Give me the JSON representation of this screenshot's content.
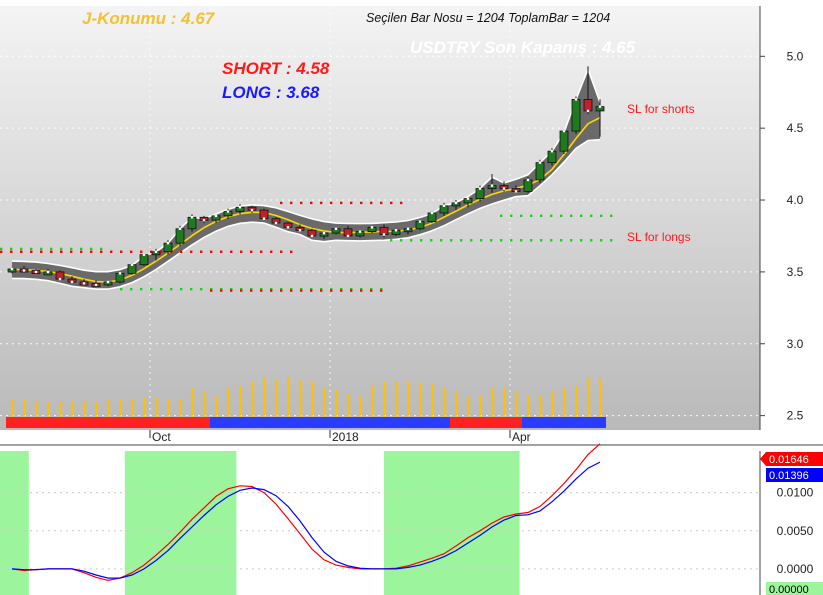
{
  "header": {
    "j_konumu": "J-Konumu : 4.67",
    "bar_info": "Seçilen Bar Nosu = 1204  ToplamBar = 1204",
    "son_kapanis": "USDTRY Son Kapanış : 4.65",
    "short_label": "SHORT : 4.58",
    "long_label": "LONG : 3.68",
    "sl_shorts": "SL for shorts",
    "sl_longs": "SL for longs"
  },
  "colors": {
    "j_konumu": "#f2c230",
    "son_kapanis": "#ffffff",
    "short": "#ff1a1a",
    "long": "#1a1aff",
    "sl_text": "#ff1a1a",
    "up_candle": "#1f7a1f",
    "down_candle": "#c0202a",
    "ma_line": "#ffd700",
    "band_line": "#ffffff",
    "volume": "#ffc000",
    "strip_red": "#ff2020",
    "strip_blue": "#2a3cff",
    "osc_red": "#ff0000",
    "osc_blue": "#0000ff",
    "osc_green_zone": "#9cf59c",
    "dots_red": "#ff0000",
    "dots_green": "#22cc22"
  },
  "chart_data": [
    {
      "type": "candlestick",
      "y_axis_ticks": [
        "5.0",
        "4.5",
        "4.0",
        "3.5",
        "3.0",
        "2.5"
      ],
      "ylim": [
        2.4,
        5.35
      ],
      "x_axis_labels": [
        "Oct",
        "2018",
        "Apr"
      ],
      "grid": true,
      "last_close": 4.65,
      "short_level": 4.58,
      "long_level": 3.68,
      "ohlc": [
        [
          3.51,
          3.53,
          3.49,
          3.52
        ],
        [
          3.52,
          3.54,
          3.5,
          3.51
        ],
        [
          3.51,
          3.52,
          3.49,
          3.5
        ],
        [
          3.5,
          3.52,
          3.48,
          3.5
        ],
        [
          3.5,
          3.51,
          3.44,
          3.45
        ],
        [
          3.45,
          3.47,
          3.42,
          3.43
        ],
        [
          3.43,
          3.45,
          3.41,
          3.42
        ],
        [
          3.42,
          3.44,
          3.4,
          3.41
        ],
        [
          3.41,
          3.44,
          3.4,
          3.43
        ],
        [
          3.43,
          3.5,
          3.42,
          3.49
        ],
        [
          3.49,
          3.56,
          3.48,
          3.55
        ],
        [
          3.55,
          3.63,
          3.54,
          3.62
        ],
        [
          3.62,
          3.66,
          3.58,
          3.64
        ],
        [
          3.64,
          3.72,
          3.62,
          3.7
        ],
        [
          3.7,
          3.82,
          3.68,
          3.8
        ],
        [
          3.8,
          3.9,
          3.78,
          3.88
        ],
        [
          3.88,
          3.89,
          3.84,
          3.86
        ],
        [
          3.86,
          3.9,
          3.84,
          3.89
        ],
        [
          3.89,
          3.94,
          3.87,
          3.92
        ],
        [
          3.92,
          3.97,
          3.9,
          3.95
        ],
        [
          3.95,
          3.96,
          3.91,
          3.93
        ],
        [
          3.93,
          3.94,
          3.86,
          3.87
        ],
        [
          3.87,
          3.88,
          3.83,
          3.84
        ],
        [
          3.84,
          3.85,
          3.8,
          3.81
        ],
        [
          3.81,
          3.83,
          3.78,
          3.79
        ],
        [
          3.79,
          3.8,
          3.74,
          3.75
        ],
        [
          3.75,
          3.78,
          3.73,
          3.77
        ],
        [
          3.77,
          3.81,
          3.76,
          3.8
        ],
        [
          3.8,
          3.82,
          3.74,
          3.75
        ],
        [
          3.75,
          3.79,
          3.74,
          3.78
        ],
        [
          3.78,
          3.82,
          3.77,
          3.81
        ],
        [
          3.81,
          3.83,
          3.74,
          3.76
        ],
        [
          3.76,
          3.8,
          3.75,
          3.79
        ],
        [
          3.79,
          3.81,
          3.76,
          3.8
        ],
        [
          3.8,
          3.86,
          3.79,
          3.85
        ],
        [
          3.85,
          3.92,
          3.84,
          3.91
        ],
        [
          3.91,
          3.98,
          3.89,
          3.96
        ],
        [
          3.96,
          4.0,
          3.93,
          3.98
        ],
        [
          3.98,
          4.02,
          3.95,
          4.01
        ],
        [
          4.01,
          4.1,
          3.99,
          4.08
        ],
        [
          4.08,
          4.18,
          4.05,
          4.1
        ],
        [
          4.1,
          4.13,
          4.06,
          4.08
        ],
        [
          4.08,
          4.1,
          4.05,
          4.06
        ],
        [
          4.06,
          4.16,
          4.05,
          4.14
        ],
        [
          4.14,
          4.28,
          4.12,
          4.26
        ],
        [
          4.26,
          4.36,
          4.24,
          4.34
        ],
        [
          4.34,
          4.49,
          4.32,
          4.48
        ],
        [
          4.48,
          4.72,
          4.46,
          4.7
        ],
        [
          4.7,
          4.93,
          4.6,
          4.62
        ],
        [
          4.62,
          4.7,
          4.44,
          4.65
        ]
      ],
      "volume": [
        0.42,
        0.42,
        0.4,
        0.4,
        0.4,
        0.4,
        0.4,
        0.4,
        0.42,
        0.42,
        0.45,
        0.48,
        0.48,
        0.45,
        0.45,
        0.72,
        0.64,
        0.55,
        0.72,
        0.8,
        0.88,
        0.98,
        0.95,
        0.98,
        0.92,
        0.88,
        0.72,
        0.68,
        0.6,
        0.52,
        0.8,
        0.9,
        0.9,
        0.88,
        0.86,
        0.82,
        0.72,
        0.62,
        0.52,
        0.55,
        0.72,
        0.72,
        0.62,
        0.55,
        0.55,
        0.62,
        0.72,
        0.8,
        0.98,
        0.96
      ],
      "direction_strip": [
        "red",
        "red",
        "red",
        "red",
        "red",
        "red",
        "red",
        "red",
        "red",
        "red",
        "red",
        "red",
        "red",
        "red",
        "red",
        "red",
        "red",
        "blue",
        "blue",
        "blue",
        "blue",
        "blue",
        "blue",
        "blue",
        "blue",
        "blue",
        "blue",
        "blue",
        "blue",
        "blue",
        "blue",
        "blue",
        "blue",
        "blue",
        "blue",
        "blue",
        "blue",
        "red",
        "red",
        "red",
        "red",
        "red",
        "red",
        "blue",
        "blue",
        "blue",
        "blue",
        "blue",
        "blue",
        "blue"
      ],
      "stop_levels": {
        "short_dots_upper": 3.98,
        "short_dots_lower": 3.64,
        "long_dots_upper": 3.89,
        "long_dots_lower": 3.72,
        "pre_oct_red": 3.64,
        "pre_oct_green": 3.66,
        "oct_red_low": 3.37,
        "oct_green_low": 3.38
      }
    },
    {
      "type": "line",
      "y_axis_ticks": [
        "0.0100",
        "0.0050",
        "0.0000"
      ],
      "ylim": [
        -0.0025,
        0.0148
      ],
      "markers": [
        "0.01646",
        "0.01396",
        "0.00000"
      ],
      "green_zones": [
        [
          0,
          1.9
        ],
        [
          10.4,
          19.2
        ],
        [
          32.0,
          42.8
        ]
      ],
      "series": [
        {
          "color": "red",
          "values": [
            0.0,
            -0.0002,
            -0.0001,
            0.0,
            0.0,
            0.0,
            -0.0005,
            -0.0011,
            -0.0015,
            -0.0012,
            -0.0005,
            0.0005,
            0.0018,
            0.0032,
            0.0048,
            0.0065,
            0.008,
            0.0095,
            0.0105,
            0.0109,
            0.0108,
            0.01,
            0.0085,
            0.0066,
            0.0046,
            0.0026,
            0.0012,
            0.0005,
            0.0002,
            0.0,
            0.0,
            0.0,
            0.0001,
            0.0004,
            0.0009,
            0.0014,
            0.002,
            0.003,
            0.0041,
            0.005,
            0.006,
            0.0068,
            0.0072,
            0.0074,
            0.0082,
            0.0096,
            0.0112,
            0.013,
            0.015,
            0.0164
          ]
        },
        {
          "color": "blue",
          "values": [
            0.0,
            -0.0001,
            -0.0001,
            0.0,
            0.0,
            0.0,
            -0.0003,
            -0.0008,
            -0.0012,
            -0.0012,
            -0.0008,
            0.0,
            0.0011,
            0.0024,
            0.004,
            0.0055,
            0.007,
            0.0084,
            0.0095,
            0.0103,
            0.0106,
            0.0104,
            0.0096,
            0.0082,
            0.0063,
            0.0041,
            0.0022,
            0.001,
            0.0004,
            0.0001,
            0.0,
            0.0,
            0.0,
            0.0002,
            0.0005,
            0.001,
            0.0016,
            0.0024,
            0.0034,
            0.0044,
            0.0055,
            0.0064,
            0.007,
            0.0071,
            0.0076,
            0.0088,
            0.0102,
            0.0118,
            0.0132,
            0.014
          ]
        }
      ]
    }
  ]
}
